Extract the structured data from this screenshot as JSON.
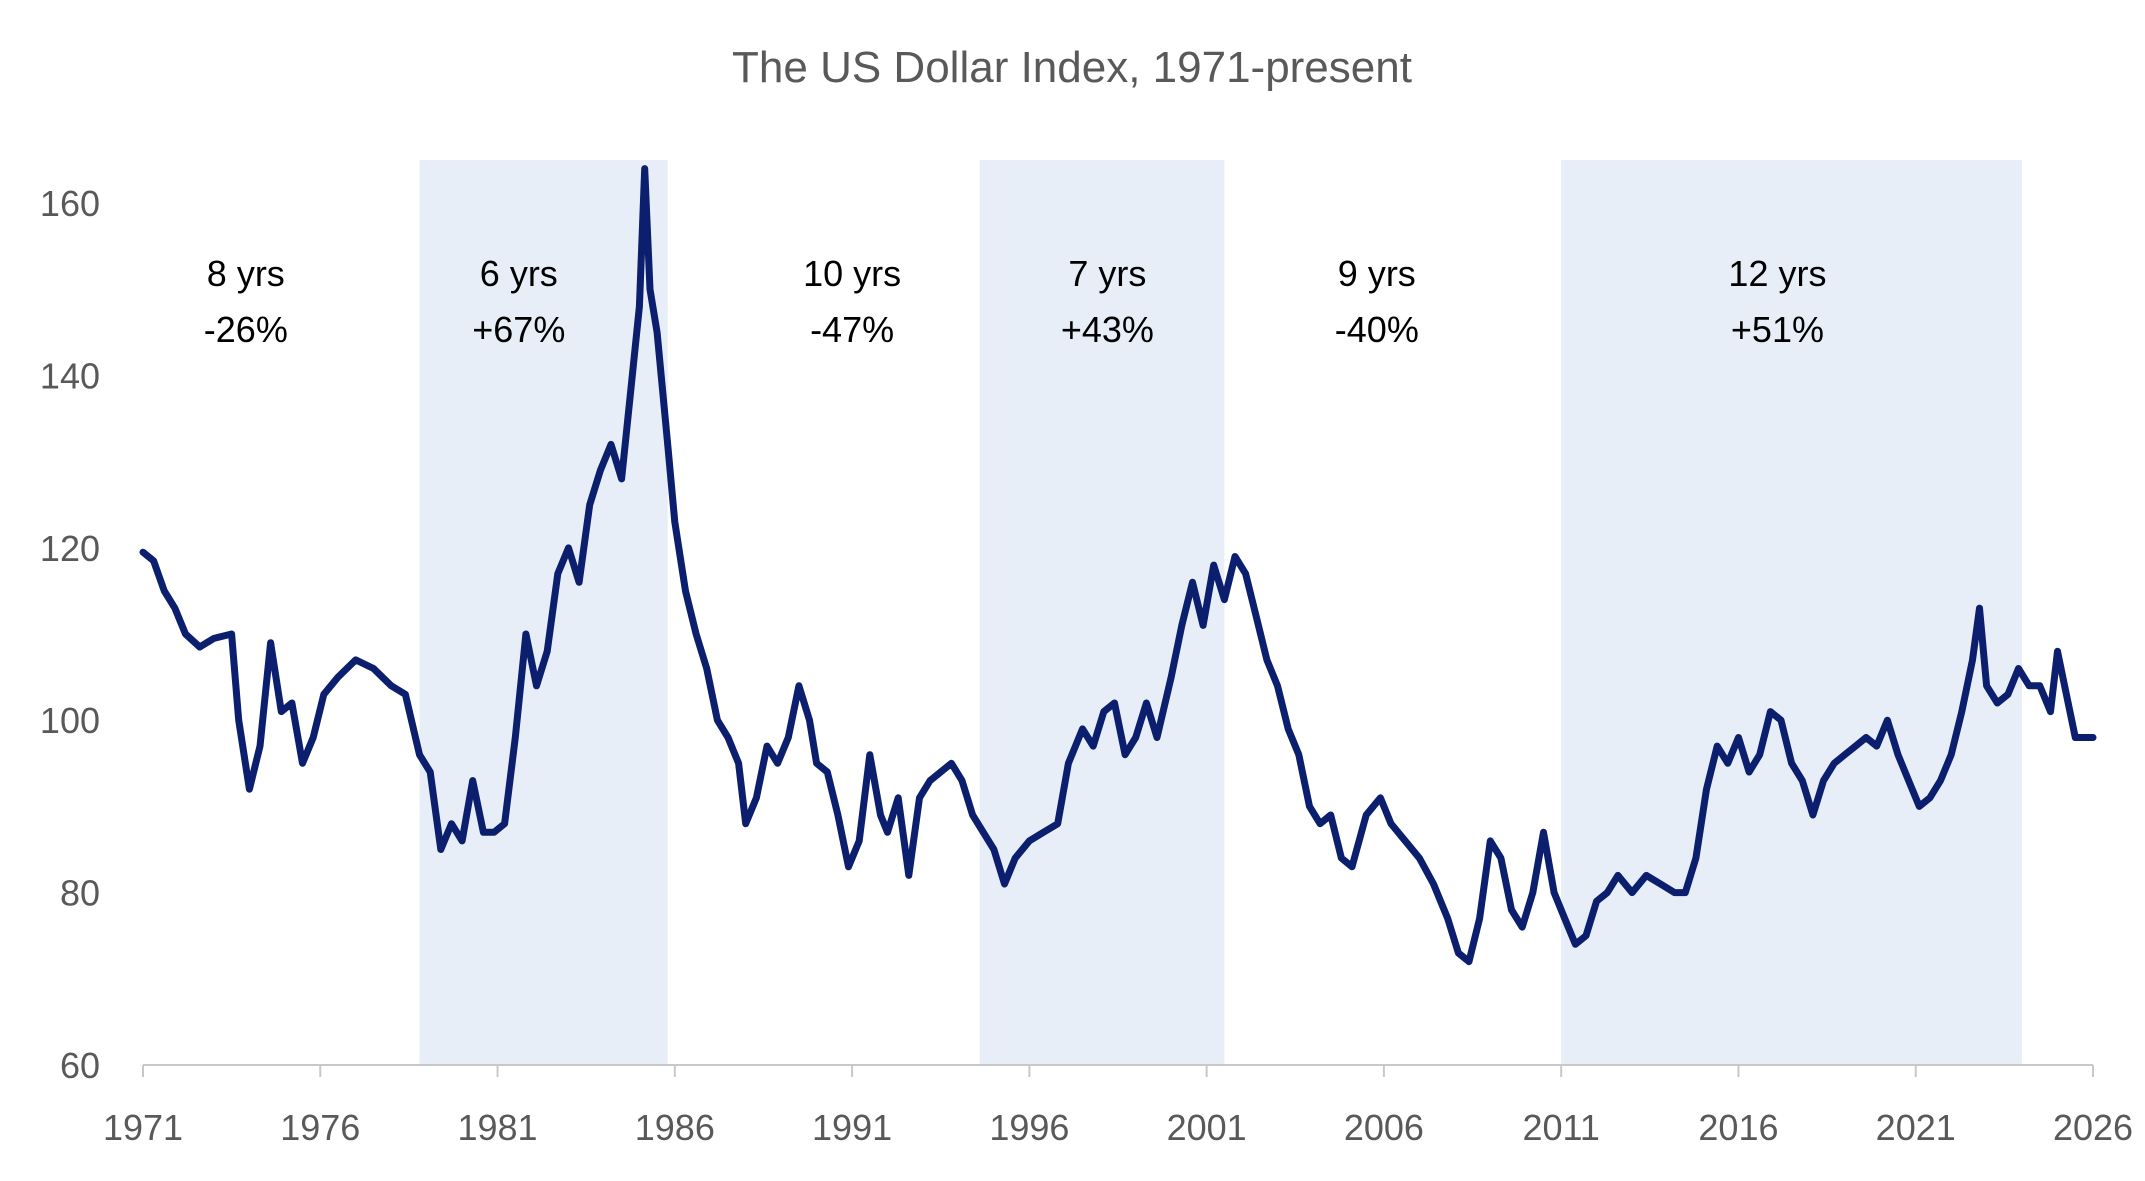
{
  "chart_data": {
    "type": "line",
    "title": "The US Dollar Index, 1971-present",
    "xlabel": "",
    "ylabel": "",
    "xlim": [
      1971,
      2026
    ],
    "ylim": [
      60,
      165
    ],
    "x_ticks": [
      1971,
      1976,
      1981,
      1986,
      1991,
      1996,
      2001,
      2006,
      2011,
      2016,
      2021,
      2026
    ],
    "y_ticks": [
      60,
      80,
      100,
      120,
      140,
      160
    ],
    "grid": false,
    "colors": {
      "line": "#0b1f6e",
      "shade": "#e8eef7",
      "axis": "#c8c8c8",
      "tick_text": "#595959"
    },
    "shaded_periods": [
      {
        "start": 1978.8,
        "end": 1985.8
      },
      {
        "start": 1994.6,
        "end": 2001.5
      },
      {
        "start": 2011.0,
        "end": 2024.0
      }
    ],
    "annotations": [
      {
        "x": 1973.9,
        "line1": "8 yrs",
        "line2": "-26%"
      },
      {
        "x": 1981.6,
        "line1": "6 yrs",
        "line2": "+67%"
      },
      {
        "x": 1991.0,
        "line1": "10 yrs",
        "line2": "-47%"
      },
      {
        "x": 1998.2,
        "line1": "7 yrs",
        "line2": "+43%"
      },
      {
        "x": 2005.8,
        "line1": "9 yrs",
        "line2": "-40%"
      },
      {
        "x": 2017.1,
        "line1": "12 yrs",
        "line2": "+51%"
      }
    ],
    "series": [
      {
        "points": [
          [
            1971.0,
            119.5
          ],
          [
            1971.3,
            118.5
          ],
          [
            1971.6,
            115.0
          ],
          [
            1971.9,
            113.0
          ],
          [
            1972.2,
            110.0
          ],
          [
            1972.6,
            108.5
          ],
          [
            1973.0,
            109.5
          ],
          [
            1973.5,
            110.0
          ],
          [
            1973.7,
            100.0
          ],
          [
            1974.0,
            92.0
          ],
          [
            1974.3,
            97.0
          ],
          [
            1974.6,
            109.0
          ],
          [
            1974.9,
            101.0
          ],
          [
            1975.2,
            102.0
          ],
          [
            1975.5,
            95.0
          ],
          [
            1975.8,
            98.0
          ],
          [
            1976.1,
            103.0
          ],
          [
            1976.5,
            105.0
          ],
          [
            1977.0,
            107.0
          ],
          [
            1977.5,
            106.0
          ],
          [
            1978.0,
            104.0
          ],
          [
            1978.4,
            103.0
          ],
          [
            1978.8,
            96.0
          ],
          [
            1979.1,
            94.0
          ],
          [
            1979.4,
            85.0
          ],
          [
            1979.7,
            88.0
          ],
          [
            1980.0,
            86.0
          ],
          [
            1980.3,
            93.0
          ],
          [
            1980.6,
            87.0
          ],
          [
            1980.9,
            87.0
          ],
          [
            1981.2,
            88.0
          ],
          [
            1981.5,
            98.0
          ],
          [
            1981.8,
            110.0
          ],
          [
            1982.1,
            104.0
          ],
          [
            1982.4,
            108.0
          ],
          [
            1982.7,
            117.0
          ],
          [
            1983.0,
            120.0
          ],
          [
            1983.3,
            116.0
          ],
          [
            1983.6,
            125.0
          ],
          [
            1983.9,
            129.0
          ],
          [
            1984.2,
            132.0
          ],
          [
            1984.5,
            128.0
          ],
          [
            1984.8,
            140.0
          ],
          [
            1985.0,
            148.0
          ],
          [
            1985.15,
            164.0
          ],
          [
            1985.3,
            150.0
          ],
          [
            1985.5,
            145.0
          ],
          [
            1985.8,
            132.0
          ],
          [
            1986.0,
            123.0
          ],
          [
            1986.3,
            115.0
          ],
          [
            1986.6,
            110.0
          ],
          [
            1986.9,
            106.0
          ],
          [
            1987.2,
            100.0
          ],
          [
            1987.5,
            98.0
          ],
          [
            1987.8,
            95.0
          ],
          [
            1988.0,
            88.0
          ],
          [
            1988.3,
            91.0
          ],
          [
            1988.6,
            97.0
          ],
          [
            1988.9,
            95.0
          ],
          [
            1989.2,
            98.0
          ],
          [
            1989.5,
            104.0
          ],
          [
            1989.8,
            100.0
          ],
          [
            1990.0,
            95.0
          ],
          [
            1990.3,
            94.0
          ],
          [
            1990.6,
            89.0
          ],
          [
            1990.9,
            83.0
          ],
          [
            1991.2,
            86.0
          ],
          [
            1991.5,
            96.0
          ],
          [
            1991.8,
            89.0
          ],
          [
            1992.0,
            87.0
          ],
          [
            1992.3,
            91.0
          ],
          [
            1992.6,
            82.0
          ],
          [
            1992.9,
            91.0
          ],
          [
            1993.2,
            93.0
          ],
          [
            1993.5,
            94.0
          ],
          [
            1993.8,
            95.0
          ],
          [
            1994.1,
            93.0
          ],
          [
            1994.4,
            89.0
          ],
          [
            1994.7,
            87.0
          ],
          [
            1995.0,
            85.0
          ],
          [
            1995.3,
            81.0
          ],
          [
            1995.6,
            84.0
          ],
          [
            1996.0,
            86.0
          ],
          [
            1996.4,
            87.0
          ],
          [
            1996.8,
            88.0
          ],
          [
            1997.1,
            95.0
          ],
          [
            1997.5,
            99.0
          ],
          [
            1997.8,
            97.0
          ],
          [
            1998.1,
            101.0
          ],
          [
            1998.4,
            102.0
          ],
          [
            1998.7,
            96.0
          ],
          [
            1999.0,
            98.0
          ],
          [
            1999.3,
            102.0
          ],
          [
            1999.6,
            98.0
          ],
          [
            2000.0,
            105.0
          ],
          [
            2000.3,
            111.0
          ],
          [
            2000.6,
            116.0
          ],
          [
            2000.9,
            111.0
          ],
          [
            2001.2,
            118.0
          ],
          [
            2001.5,
            114.0
          ],
          [
            2001.8,
            119.0
          ],
          [
            2002.1,
            117.0
          ],
          [
            2002.4,
            112.0
          ],
          [
            2002.7,
            107.0
          ],
          [
            2003.0,
            104.0
          ],
          [
            2003.3,
            99.0
          ],
          [
            2003.6,
            96.0
          ],
          [
            2003.9,
            90.0
          ],
          [
            2004.2,
            88.0
          ],
          [
            2004.5,
            89.0
          ],
          [
            2004.8,
            84.0
          ],
          [
            2005.1,
            83.0
          ],
          [
            2005.5,
            89.0
          ],
          [
            2005.9,
            91.0
          ],
          [
            2006.2,
            88.0
          ],
          [
            2006.6,
            86.0
          ],
          [
            2007.0,
            84.0
          ],
          [
            2007.4,
            81.0
          ],
          [
            2007.8,
            77.0
          ],
          [
            2008.1,
            73.0
          ],
          [
            2008.4,
            72.0
          ],
          [
            2008.7,
            77.0
          ],
          [
            2009.0,
            86.0
          ],
          [
            2009.3,
            84.0
          ],
          [
            2009.6,
            78.0
          ],
          [
            2009.9,
            76.0
          ],
          [
            2010.2,
            80.0
          ],
          [
            2010.5,
            87.0
          ],
          [
            2010.8,
            80.0
          ],
          [
            2011.1,
            77.0
          ],
          [
            2011.4,
            74.0
          ],
          [
            2011.7,
            75.0
          ],
          [
            2012.0,
            79.0
          ],
          [
            2012.3,
            80.0
          ],
          [
            2012.6,
            82.0
          ],
          [
            2013.0,
            80.0
          ],
          [
            2013.4,
            82.0
          ],
          [
            2013.8,
            81.0
          ],
          [
            2014.2,
            80.0
          ],
          [
            2014.5,
            80.0
          ],
          [
            2014.8,
            84.0
          ],
          [
            2015.1,
            92.0
          ],
          [
            2015.4,
            97.0
          ],
          [
            2015.7,
            95.0
          ],
          [
            2016.0,
            98.0
          ],
          [
            2016.3,
            94.0
          ],
          [
            2016.6,
            96.0
          ],
          [
            2016.9,
            101.0
          ],
          [
            2017.2,
            100.0
          ],
          [
            2017.5,
            95.0
          ],
          [
            2017.8,
            93.0
          ],
          [
            2018.1,
            89.0
          ],
          [
            2018.4,
            93.0
          ],
          [
            2018.7,
            95.0
          ],
          [
            2019.0,
            96.0
          ],
          [
            2019.3,
            97.0
          ],
          [
            2019.6,
            98.0
          ],
          [
            2019.9,
            97.0
          ],
          [
            2020.2,
            100.0
          ],
          [
            2020.5,
            96.0
          ],
          [
            2020.8,
            93.0
          ],
          [
            2021.1,
            90.0
          ],
          [
            2021.4,
            91.0
          ],
          [
            2021.7,
            93.0
          ],
          [
            2022.0,
            96.0
          ],
          [
            2022.3,
            101.0
          ],
          [
            2022.6,
            107.0
          ],
          [
            2022.8,
            113.0
          ],
          [
            2023.0,
            104.0
          ],
          [
            2023.3,
            102.0
          ],
          [
            2023.6,
            103.0
          ],
          [
            2023.9,
            106.0
          ],
          [
            2024.2,
            104.0
          ],
          [
            2024.5,
            104.0
          ],
          [
            2024.8,
            101.0
          ],
          [
            2025.0,
            108.0
          ],
          [
            2025.2,
            104.0
          ],
          [
            2025.5,
            98.0
          ],
          [
            2025.8,
            98.0
          ],
          [
            2026.0,
            98.0
          ]
        ]
      }
    ]
  }
}
